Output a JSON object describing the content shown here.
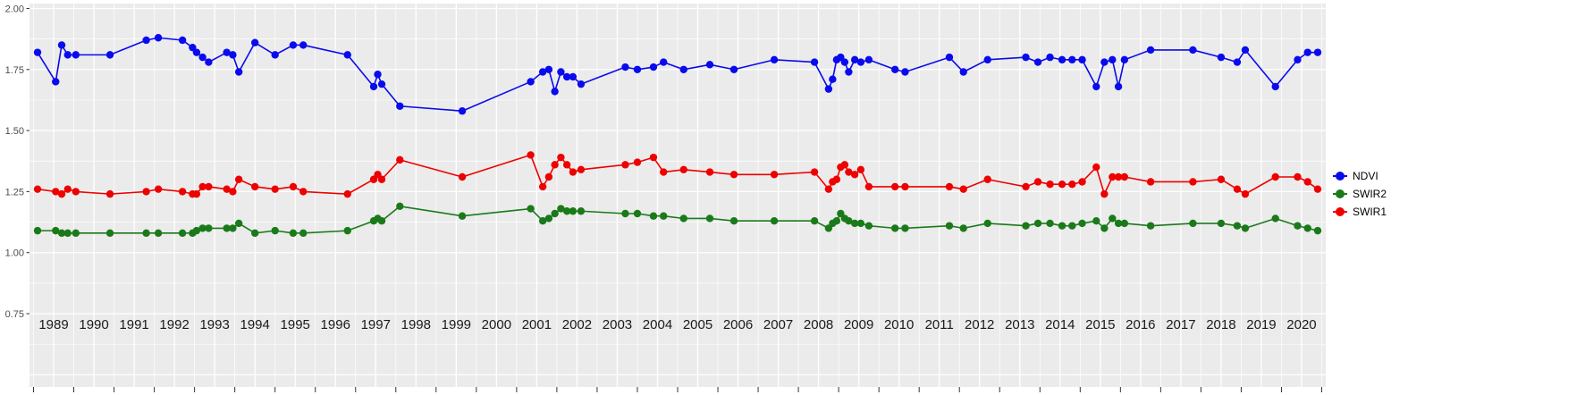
{
  "chart_data": {
    "type": "line",
    "title": "",
    "xlabel": "",
    "ylabel": "",
    "xlim": [
      1988.4,
      2020.6
    ],
    "ylim": [
      0.45,
      2.02
    ],
    "grid": true,
    "legend_position": "right",
    "panel_bg": "#EBEBEB",
    "grid_color": "#FFFFFF",
    "tick_color": "#333333",
    "y_axis_text_color": "#4D4D4D",
    "x_axis_text_color": "#1A1A1A",
    "y_ticks": [
      2.0,
      1.75,
      1.5,
      1.25,
      1.0,
      0.75
    ],
    "y_tick_labels": [
      "2.00",
      "1.75",
      "1.50",
      "1.25",
      "1.00",
      "0.75"
    ],
    "x_tick_labels": [
      "1989",
      "1990",
      "1991",
      "1992",
      "1993",
      "1994",
      "1995",
      "1996",
      "1997",
      "1998",
      "1999",
      "2000",
      "2001",
      "2002",
      "2003",
      "2004",
      "2005",
      "2006",
      "2007",
      "2008",
      "2009",
      "2010",
      "2011",
      "2012",
      "2013",
      "2014",
      "2015",
      "2016",
      "2017",
      "2018",
      "2019",
      "2020"
    ],
    "x": [
      1988.6,
      1989.05,
      1989.2,
      1989.35,
      1989.55,
      1990.4,
      1991.3,
      1991.6,
      1992.2,
      1992.45,
      1992.55,
      1992.7,
      1992.85,
      1993.3,
      1993.45,
      1993.6,
      1994.0,
      1994.5,
      1994.95,
      1995.2,
      1996.3,
      1996.95,
      1997.05,
      1997.15,
      1997.6,
      1999.15,
      2000.85,
      2001.15,
      2001.3,
      2001.45,
      2001.6,
      2001.75,
      2001.9,
      2002.1,
      2003.2,
      2003.5,
      2003.9,
      2004.15,
      2004.65,
      2005.3,
      2005.9,
      2006.9,
      2007.9,
      2008.25,
      2008.35,
      2008.45,
      2008.55,
      2008.65,
      2008.75,
      2008.9,
      2009.05,
      2009.25,
      2009.9,
      2010.15,
      2011.25,
      2011.6,
      2012.2,
      2013.15,
      2013.45,
      2013.75,
      2014.05,
      2014.3,
      2014.55,
      2014.9,
      2015.1,
      2015.3,
      2015.45,
      2015.6,
      2016.25,
      2017.3,
      2018.0,
      2018.4,
      2018.6,
      2019.35,
      2019.9,
      2020.15,
      2020.4
    ],
    "series": [
      {
        "name": "NDVI",
        "color": "#0A0AEE",
        "values": [
          1.82,
          1.7,
          1.85,
          1.81,
          1.81,
          1.81,
          1.87,
          1.88,
          1.87,
          1.84,
          1.82,
          1.8,
          1.78,
          1.82,
          1.81,
          1.74,
          1.86,
          1.81,
          1.85,
          1.85,
          1.81,
          1.68,
          1.73,
          1.69,
          1.6,
          1.58,
          1.7,
          1.74,
          1.75,
          1.66,
          1.74,
          1.72,
          1.72,
          1.69,
          1.76,
          1.75,
          1.76,
          1.78,
          1.75,
          1.77,
          1.75,
          1.79,
          1.78,
          1.67,
          1.71,
          1.79,
          1.8,
          1.78,
          1.74,
          1.79,
          1.78,
          1.79,
          1.75,
          1.74,
          1.8,
          1.74,
          1.79,
          1.8,
          1.78,
          1.8,
          1.79,
          1.79,
          1.79,
          1.68,
          1.78,
          1.79,
          1.68,
          1.79,
          1.83,
          1.83,
          1.8,
          1.78,
          1.83,
          1.68,
          1.79,
          1.82,
          1.82
        ]
      },
      {
        "name": "SWIR2",
        "color": "#1A7A1A",
        "values": [
          1.09,
          1.09,
          1.08,
          1.08,
          1.08,
          1.08,
          1.08,
          1.08,
          1.08,
          1.08,
          1.09,
          1.1,
          1.1,
          1.1,
          1.1,
          1.12,
          1.08,
          1.09,
          1.08,
          1.08,
          1.09,
          1.13,
          1.14,
          1.13,
          1.19,
          1.15,
          1.18,
          1.13,
          1.14,
          1.16,
          1.18,
          1.17,
          1.17,
          1.17,
          1.16,
          1.16,
          1.15,
          1.15,
          1.14,
          1.14,
          1.13,
          1.13,
          1.13,
          1.1,
          1.12,
          1.13,
          1.16,
          1.14,
          1.13,
          1.12,
          1.12,
          1.11,
          1.1,
          1.1,
          1.11,
          1.1,
          1.12,
          1.11,
          1.12,
          1.12,
          1.11,
          1.11,
          1.12,
          1.13,
          1.1,
          1.14,
          1.12,
          1.12,
          1.11,
          1.12,
          1.12,
          1.11,
          1.1,
          1.14,
          1.11,
          1.1,
          1.09
        ]
      },
      {
        "name": "SWIR1",
        "color": "#EE0000",
        "values": [
          1.26,
          1.25,
          1.24,
          1.26,
          1.25,
          1.24,
          1.25,
          1.26,
          1.25,
          1.24,
          1.24,
          1.27,
          1.27,
          1.26,
          1.25,
          1.3,
          1.27,
          1.26,
          1.27,
          1.25,
          1.24,
          1.3,
          1.32,
          1.3,
          1.38,
          1.31,
          1.4,
          1.27,
          1.31,
          1.36,
          1.39,
          1.36,
          1.33,
          1.34,
          1.36,
          1.37,
          1.39,
          1.33,
          1.34,
          1.33,
          1.32,
          1.32,
          1.33,
          1.26,
          1.29,
          1.3,
          1.35,
          1.36,
          1.33,
          1.32,
          1.34,
          1.27,
          1.27,
          1.27,
          1.27,
          1.26,
          1.3,
          1.27,
          1.29,
          1.28,
          1.28,
          1.28,
          1.29,
          1.35,
          1.24,
          1.31,
          1.31,
          1.31,
          1.29,
          1.29,
          1.3,
          1.26,
          1.24,
          1.31,
          1.31,
          1.29,
          1.26
        ]
      }
    ]
  }
}
